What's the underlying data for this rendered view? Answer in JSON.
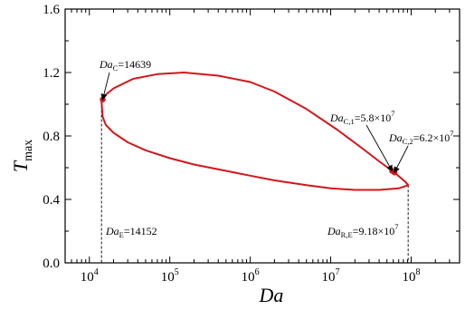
{
  "chart_data": {
    "type": "line",
    "xscale": "log",
    "xlim": [
      5000,
      400000000
    ],
    "ylim": [
      0.0,
      1.6
    ],
    "xlabel": {
      "base": "Da"
    },
    "ylabel": {
      "base": "T",
      "sub": "max"
    },
    "xticks": [
      {
        "value": 10000,
        "base": "10",
        "exp": "4"
      },
      {
        "value": 100000,
        "base": "10",
        "exp": "5"
      },
      {
        "value": 1000000,
        "base": "10",
        "exp": "6"
      },
      {
        "value": 10000000,
        "base": "10",
        "exp": "7"
      },
      {
        "value": 100000000,
        "base": "10",
        "exp": "8"
      }
    ],
    "yticks": [
      {
        "value": 0.0,
        "label": "0.0"
      },
      {
        "value": 0.4,
        "label": "0.4"
      },
      {
        "value": 0.8,
        "label": "0.8"
      },
      {
        "value": 1.2,
        "label": "1.2"
      },
      {
        "value": 1.6,
        "label": "1.6"
      }
    ],
    "series": [
      {
        "color": "#d0181c",
        "points": [
          [
            14152,
            1.02
          ],
          [
            14639,
            0.92
          ],
          [
            16000,
            0.87
          ],
          [
            20000,
            0.82
          ],
          [
            30000,
            0.76
          ],
          [
            50000,
            0.71
          ],
          [
            100000,
            0.66
          ],
          [
            200000,
            0.62
          ],
          [
            500000,
            0.58
          ],
          [
            1000000,
            0.55
          ],
          [
            2000000,
            0.52
          ],
          [
            5000000,
            0.49
          ],
          [
            10000000,
            0.47
          ],
          [
            20000000,
            0.46
          ],
          [
            40000000,
            0.46
          ],
          [
            70000000,
            0.47
          ],
          [
            91800000,
            0.49
          ],
          [
            85000000,
            0.51
          ],
          [
            62000000,
            0.57
          ],
          [
            58000000,
            0.58
          ],
          [
            40000000,
            0.64
          ],
          [
            25000000,
            0.72
          ],
          [
            12000000,
            0.84
          ],
          [
            5000000,
            0.97
          ],
          [
            2000000,
            1.08
          ],
          [
            1000000,
            1.14
          ],
          [
            400000,
            1.18
          ],
          [
            150000,
            1.2
          ],
          [
            70000,
            1.19
          ],
          [
            35000,
            1.16
          ],
          [
            20000,
            1.1
          ],
          [
            16000,
            1.06
          ],
          [
            14639,
            1.03
          ],
          [
            14152,
            1.02
          ]
        ]
      }
    ],
    "markers": [
      {
        "x": 14639,
        "y": 1.03,
        "color": "#d0181c"
      },
      {
        "x": 58000000,
        "y": 0.58,
        "color": "#d0181c"
      },
      {
        "x": 62000000,
        "y": 0.57,
        "color": "#d0181c"
      }
    ],
    "reference_lines": [
      {
        "x": 14152,
        "y_top": 1.02
      },
      {
        "x": 91800000,
        "y_top": 0.49
      }
    ],
    "annotations": [
      {
        "id": "dac",
        "base": "Da",
        "sub": "C",
        "text": "=14639",
        "point": [
          14639,
          1.03
        ]
      },
      {
        "id": "dac1",
        "base": "Da",
        "sub": "C,1",
        "text": "=5.8×10",
        "sup": "7",
        "point": [
          58000000,
          0.58
        ]
      },
      {
        "id": "dac2",
        "base": "Da",
        "sub": "C,2",
        "text": "=6.2×10",
        "sup": "7",
        "point": [
          62000000,
          0.57
        ]
      },
      {
        "id": "dae",
        "base": "Da",
        "sub": "E",
        "text": "=14152"
      },
      {
        "id": "dare",
        "base": "Da",
        "sub": "R,E",
        "text": "=9.18×10",
        "sup": "7"
      }
    ]
  }
}
